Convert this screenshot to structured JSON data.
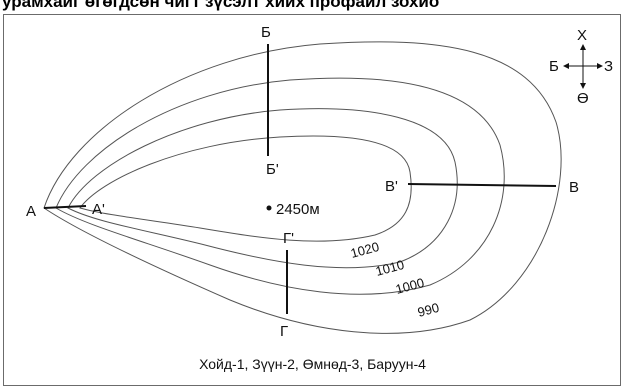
{
  "header_text": "урамхайг өгөгдсөн чигт зүсэлт хийх профайл зохио",
  "contour_labels": [
    "1020",
    "1010",
    "1000",
    "990"
  ],
  "summit": {
    "label": "2450м"
  },
  "profiles": {
    "a": {
      "start": "А",
      "end": "А'"
    },
    "b": {
      "start": "Б",
      "end": "Б'"
    },
    "v": {
      "start": "В",
      "end": "В'"
    },
    "g": {
      "start": "Г",
      "end": "Г'"
    }
  },
  "compass": {
    "north": "Х",
    "east": "З",
    "south": "Ө",
    "west": "Б"
  },
  "caption": "Хойд-1, Зүүн-2, Өмнөд-3, Баруун-4"
}
